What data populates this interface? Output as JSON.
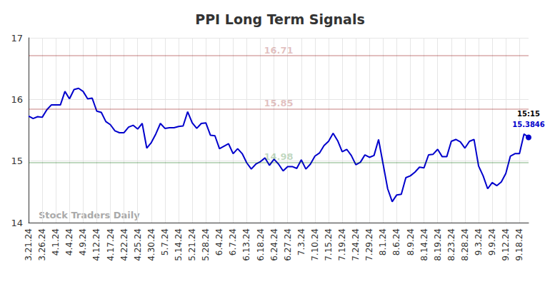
{
  "chart_data": {
    "type": "line",
    "title": "PPI Long Term Signals",
    "watermark": "Stock Traders Daily",
    "categories": [
      "3.21.24",
      null,
      null,
      "3.26.24",
      null,
      null,
      "4.1.24",
      null,
      null,
      "4.4.24",
      null,
      null,
      "4.9.24",
      null,
      null,
      "4.12.24",
      null,
      null,
      "4.17.24",
      null,
      null,
      "4.22.24",
      null,
      null,
      "4.25.24",
      null,
      null,
      "4.30.24",
      null,
      null,
      "5.7.24",
      null,
      null,
      "5.14.24",
      null,
      null,
      "5.21.24",
      null,
      null,
      "5.28.24",
      null,
      null,
      "6.4.24",
      null,
      null,
      "6.7.24",
      null,
      null,
      "6.13.24",
      null,
      null,
      "6.18.24",
      null,
      null,
      "6.24.24",
      null,
      null,
      "6.27.24",
      null,
      null,
      "7.3.24",
      null,
      null,
      "7.10.24",
      null,
      null,
      "7.15.24",
      null,
      null,
      "7.19.24",
      null,
      null,
      "7.24.24",
      null,
      null,
      "7.29.24",
      null,
      null,
      "8.1.24",
      null,
      null,
      "8.6.24",
      null,
      null,
      "8.9.24",
      null,
      null,
      "8.14.24",
      null,
      null,
      "8.19.24",
      null,
      null,
      "8.23.24",
      null,
      null,
      "8.28.24",
      null,
      null,
      "9.3.24",
      null,
      null,
      "9.9.24",
      null,
      null,
      "9.12.24",
      null,
      null,
      "9.18.24",
      null,
      null
    ],
    "values": [
      15.73,
      15.69,
      15.72,
      15.71,
      15.83,
      15.91,
      15.91,
      15.91,
      16.13,
      16.01,
      16.16,
      16.18,
      16.13,
      16.01,
      16.02,
      15.81,
      15.79,
      15.64,
      15.59,
      15.49,
      15.46,
      15.46,
      15.55,
      15.58,
      15.52,
      15.61,
      15.21,
      15.3,
      15.44,
      15.61,
      15.53,
      15.54,
      15.54,
      15.56,
      15.57,
      15.8,
      15.62,
      15.53,
      15.61,
      15.62,
      15.42,
      15.41,
      15.2,
      15.24,
      15.28,
      15.12,
      15.2,
      15.12,
      14.97,
      14.87,
      14.95,
      14.99,
      15.05,
      14.93,
      15.03,
      14.95,
      14.84,
      14.91,
      14.91,
      14.88,
      15.02,
      14.87,
      14.95,
      15.08,
      15.13,
      15.25,
      15.32,
      15.45,
      15.33,
      15.15,
      15.19,
      15.09,
      14.94,
      14.98,
      15.1,
      15.06,
      15.09,
      15.35,
      14.95,
      14.55,
      14.34,
      14.45,
      14.46,
      14.73,
      14.76,
      14.82,
      14.9,
      14.89,
      15.1,
      15.11,
      15.19,
      15.07,
      15.07,
      15.32,
      15.35,
      15.31,
      15.21,
      15.32,
      15.35,
      14.92,
      14.76,
      14.55,
      14.65,
      14.6,
      14.66,
      14.8,
      15.08,
      15.12,
      15.12,
      15.44,
      15.3846
    ],
    "color": "#0000cc",
    "last_label": "15:15",
    "lines": [
      {
        "value": 16.71,
        "label": "16.71",
        "color": "#8b0000"
      },
      {
        "value": 15.85,
        "label": "15.85",
        "color": "#8b0000"
      },
      {
        "value": 14.98,
        "label": "14.98",
        "color": "#006400"
      }
    ],
    "ylim": [
      14,
      17
    ],
    "yticks": [
      14,
      15,
      16,
      17
    ],
    "grid": true
  }
}
